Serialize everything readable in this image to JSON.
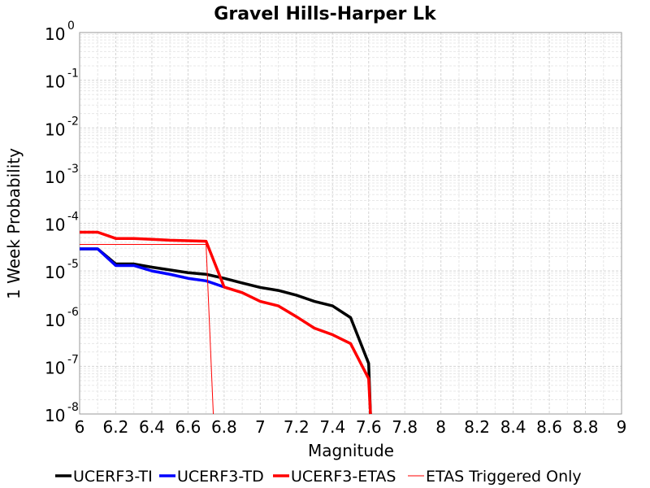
{
  "chart_data": {
    "type": "line",
    "title": "Gravel Hills-Harper Lk",
    "xlabel": "Magnitude",
    "ylabel": "1 Week Probability",
    "xlim": [
      6,
      9
    ],
    "ylim": [
      1e-08,
      1
    ],
    "y_scale": "log",
    "grid": true,
    "legend_position": "bottom",
    "x_ticks": [
      "6",
      "6.2",
      "6.4",
      "6.6",
      "6.8",
      "7",
      "7.2",
      "7.4",
      "7.6",
      "7.8",
      "8",
      "8.2",
      "8.4",
      "8.6",
      "8.8",
      "9"
    ],
    "y_ticks": [
      {
        "base": "10",
        "exp": "0"
      },
      {
        "base": "10",
        "exp": "-1"
      },
      {
        "base": "10",
        "exp": "-2"
      },
      {
        "base": "10",
        "exp": "-3"
      },
      {
        "base": "10",
        "exp": "-4"
      },
      {
        "base": "10",
        "exp": "-5"
      },
      {
        "base": "10",
        "exp": "-6"
      },
      {
        "base": "10",
        "exp": "-7"
      },
      {
        "base": "10",
        "exp": "-8"
      }
    ],
    "series": [
      {
        "name": "UCERF3-TI",
        "color": "#000000",
        "width": 3.5,
        "x": [
          6.0,
          6.1,
          6.2,
          6.3,
          6.4,
          6.5,
          6.6,
          6.7,
          6.8,
          6.9,
          7.0,
          7.1,
          7.2,
          7.3,
          7.4,
          7.5,
          7.6,
          7.61
        ],
        "y": [
          2.9e-05,
          2.9e-05,
          1.4e-05,
          1.4e-05,
          1.2e-05,
          1.05e-05,
          9.2e-06,
          8.5e-06,
          7e-06,
          5.6e-06,
          4.5e-06,
          3.9e-06,
          3.1e-06,
          2.3e-06,
          1.85e-06,
          1.05e-06,
          1.15e-07,
          1e-08
        ]
      },
      {
        "name": "UCERF3-TD",
        "color": "#0000ff",
        "width": 3.5,
        "x": [
          6.0,
          6.1,
          6.2,
          6.3,
          6.4,
          6.5,
          6.6,
          6.7,
          6.8
        ],
        "y": [
          2.9e-05,
          2.9e-05,
          1.3e-05,
          1.3e-05,
          1e-05,
          8.5e-06,
          7e-06,
          6.2e-06,
          4.6e-06
        ]
      },
      {
        "name": "UCERF3-ETAS",
        "color": "#ff0000",
        "width": 3.5,
        "x": [
          6.0,
          6.1,
          6.2,
          6.3,
          6.4,
          6.5,
          6.6,
          6.7,
          6.8,
          6.9,
          7.0,
          7.1,
          7.2,
          7.3,
          7.4,
          7.5,
          7.6,
          7.61
        ],
        "y": [
          6.5e-05,
          6.5e-05,
          4.8e-05,
          4.8e-05,
          4.6e-05,
          4.4e-05,
          4.3e-05,
          4.2e-05,
          4.6e-06,
          3.5e-06,
          2.3e-06,
          1.85e-06,
          1.1e-06,
          6.3e-07,
          4.6e-07,
          3e-07,
          5.5e-08,
          1e-08
        ]
      },
      {
        "name": "ETAS Triggered Only",
        "color": "#ff0000",
        "width": 1,
        "x": [
          6.0,
          6.1,
          6.2,
          6.3,
          6.4,
          6.5,
          6.6,
          6.7,
          6.74
        ],
        "y": [
          3.6e-05,
          3.6e-05,
          3.6e-05,
          3.6e-05,
          3.6e-05,
          3.6e-05,
          3.6e-05,
          3.6e-05,
          1e-08
        ]
      }
    ]
  }
}
